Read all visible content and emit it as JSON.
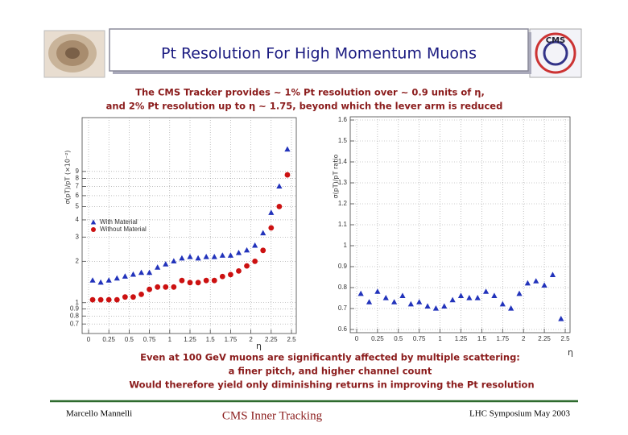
{
  "title": "Pt Resolution For High Momentum Muons",
  "subtitle": [
    "The CMS Tracker provides ~ 1% Pt resolution over ~ 0.9 units of η,",
    "and 2% Pt resolution up to η ~ 1.75, beyond which the lever arm is reduced"
  ],
  "caption": [
    "Even at 100 GeV muons are significantly affected by multiple scattering:",
    "a finer pitch, and higher channel count",
    "Would therefore yield only diminishing returns in improving the Pt resolution"
  ],
  "footer": {
    "left": "Marcello Mannelli",
    "center": "CMS Inner Tracking",
    "right": "LHC Symposium May 2003"
  },
  "chart_data": [
    {
      "type": "scatter",
      "x_label": "η",
      "y_label": "σ(pT)/pT (×10⁻²)",
      "log_y": true,
      "grid": true,
      "legend": "left",
      "xlim": [
        0,
        2.5
      ],
      "ylim": [
        0.63,
        21
      ],
      "xticks": [
        0,
        0.25,
        0.5,
        0.75,
        1,
        1.25,
        1.5,
        1.75,
        2,
        2.25,
        2.5
      ],
      "yticks": [
        0.7,
        0.8,
        0.9,
        1,
        2,
        3,
        4,
        5,
        6,
        7,
        8,
        9
      ],
      "x": [
        0.05,
        0.15,
        0.25,
        0.35,
        0.45,
        0.55,
        0.65,
        0.75,
        0.85,
        0.95,
        1.05,
        1.15,
        1.25,
        1.35,
        1.45,
        1.55,
        1.65,
        1.75,
        1.85,
        1.95,
        2.05,
        2.15,
        2.25,
        2.35,
        2.45
      ],
      "series": [
        {
          "name": "With Material",
          "color": "#2233bb",
          "marker": "triangle",
          "values": [
            1.45,
            1.4,
            1.45,
            1.5,
            1.55,
            1.6,
            1.65,
            1.65,
            1.8,
            1.9,
            2.0,
            2.1,
            2.15,
            2.1,
            2.15,
            2.15,
            2.2,
            2.2,
            2.3,
            2.4,
            2.6,
            3.2,
            4.5,
            7,
            13
          ]
        },
        {
          "name": "Without Material",
          "color": "#cc1111",
          "marker": "circle",
          "values": [
            1.05,
            1.05,
            1.05,
            1.05,
            1.1,
            1.1,
            1.15,
            1.25,
            1.3,
            1.3,
            1.3,
            1.45,
            1.4,
            1.4,
            1.45,
            1.45,
            1.55,
            1.6,
            1.7,
            1.85,
            2.0,
            2.4,
            3.5,
            5,
            8.5
          ]
        }
      ]
    },
    {
      "type": "scatter",
      "x_label": "η",
      "y_label": "σ(pT)/pT ratio",
      "log_y": false,
      "grid": true,
      "xlim": [
        0,
        2.5
      ],
      "ylim": [
        0.6,
        1.6
      ],
      "xticks": [
        0,
        0.25,
        0.5,
        0.75,
        1,
        1.25,
        1.5,
        1.75,
        2,
        2.25,
        2.5
      ],
      "yticks": [
        0.6,
        0.7,
        0.8,
        0.9,
        1,
        1.1,
        1.2,
        1.3,
        1.4,
        1.5,
        1.6
      ],
      "x": [
        0.05,
        0.15,
        0.25,
        0.35,
        0.45,
        0.55,
        0.65,
        0.75,
        0.85,
        0.95,
        1.05,
        1.15,
        1.25,
        1.35,
        1.45,
        1.55,
        1.65,
        1.75,
        1.85,
        1.95,
        2.05,
        2.15,
        2.25,
        2.35,
        2.45
      ],
      "series": [
        {
          "color": "#2233bb",
          "marker": "triangle",
          "values": [
            0.77,
            0.73,
            0.78,
            0.75,
            0.73,
            0.76,
            0.72,
            0.73,
            0.71,
            0.7,
            0.71,
            0.74,
            0.76,
            0.75,
            0.75,
            0.78,
            0.76,
            0.72,
            0.7,
            0.77,
            0.82,
            0.83,
            0.81,
            0.86,
            0.65
          ]
        }
      ]
    }
  ]
}
